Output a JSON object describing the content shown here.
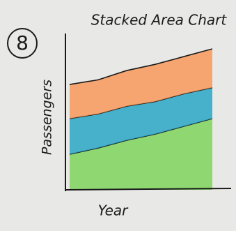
{
  "annotation": "8",
  "chart_data": {
    "type": "stacked-area",
    "title": "Stacked Area Chart",
    "x_label": "Year",
    "y_label": "Passengers",
    "categories": [
      null,
      null,
      null,
      null,
      null,
      null
    ],
    "series": [
      {
        "color": "#7fd35c",
        "values": [
          23,
          27,
          32,
          36,
          41,
          46
        ]
      },
      {
        "color": "#2aa6c6",
        "values": [
          23,
          22,
          22,
          21,
          21,
          20
        ]
      },
      {
        "color": "#f8995a",
        "values": [
          22,
          22,
          23,
          24,
          24,
          25
        ]
      }
    ],
    "ylim": [
      0,
      100
    ]
  }
}
